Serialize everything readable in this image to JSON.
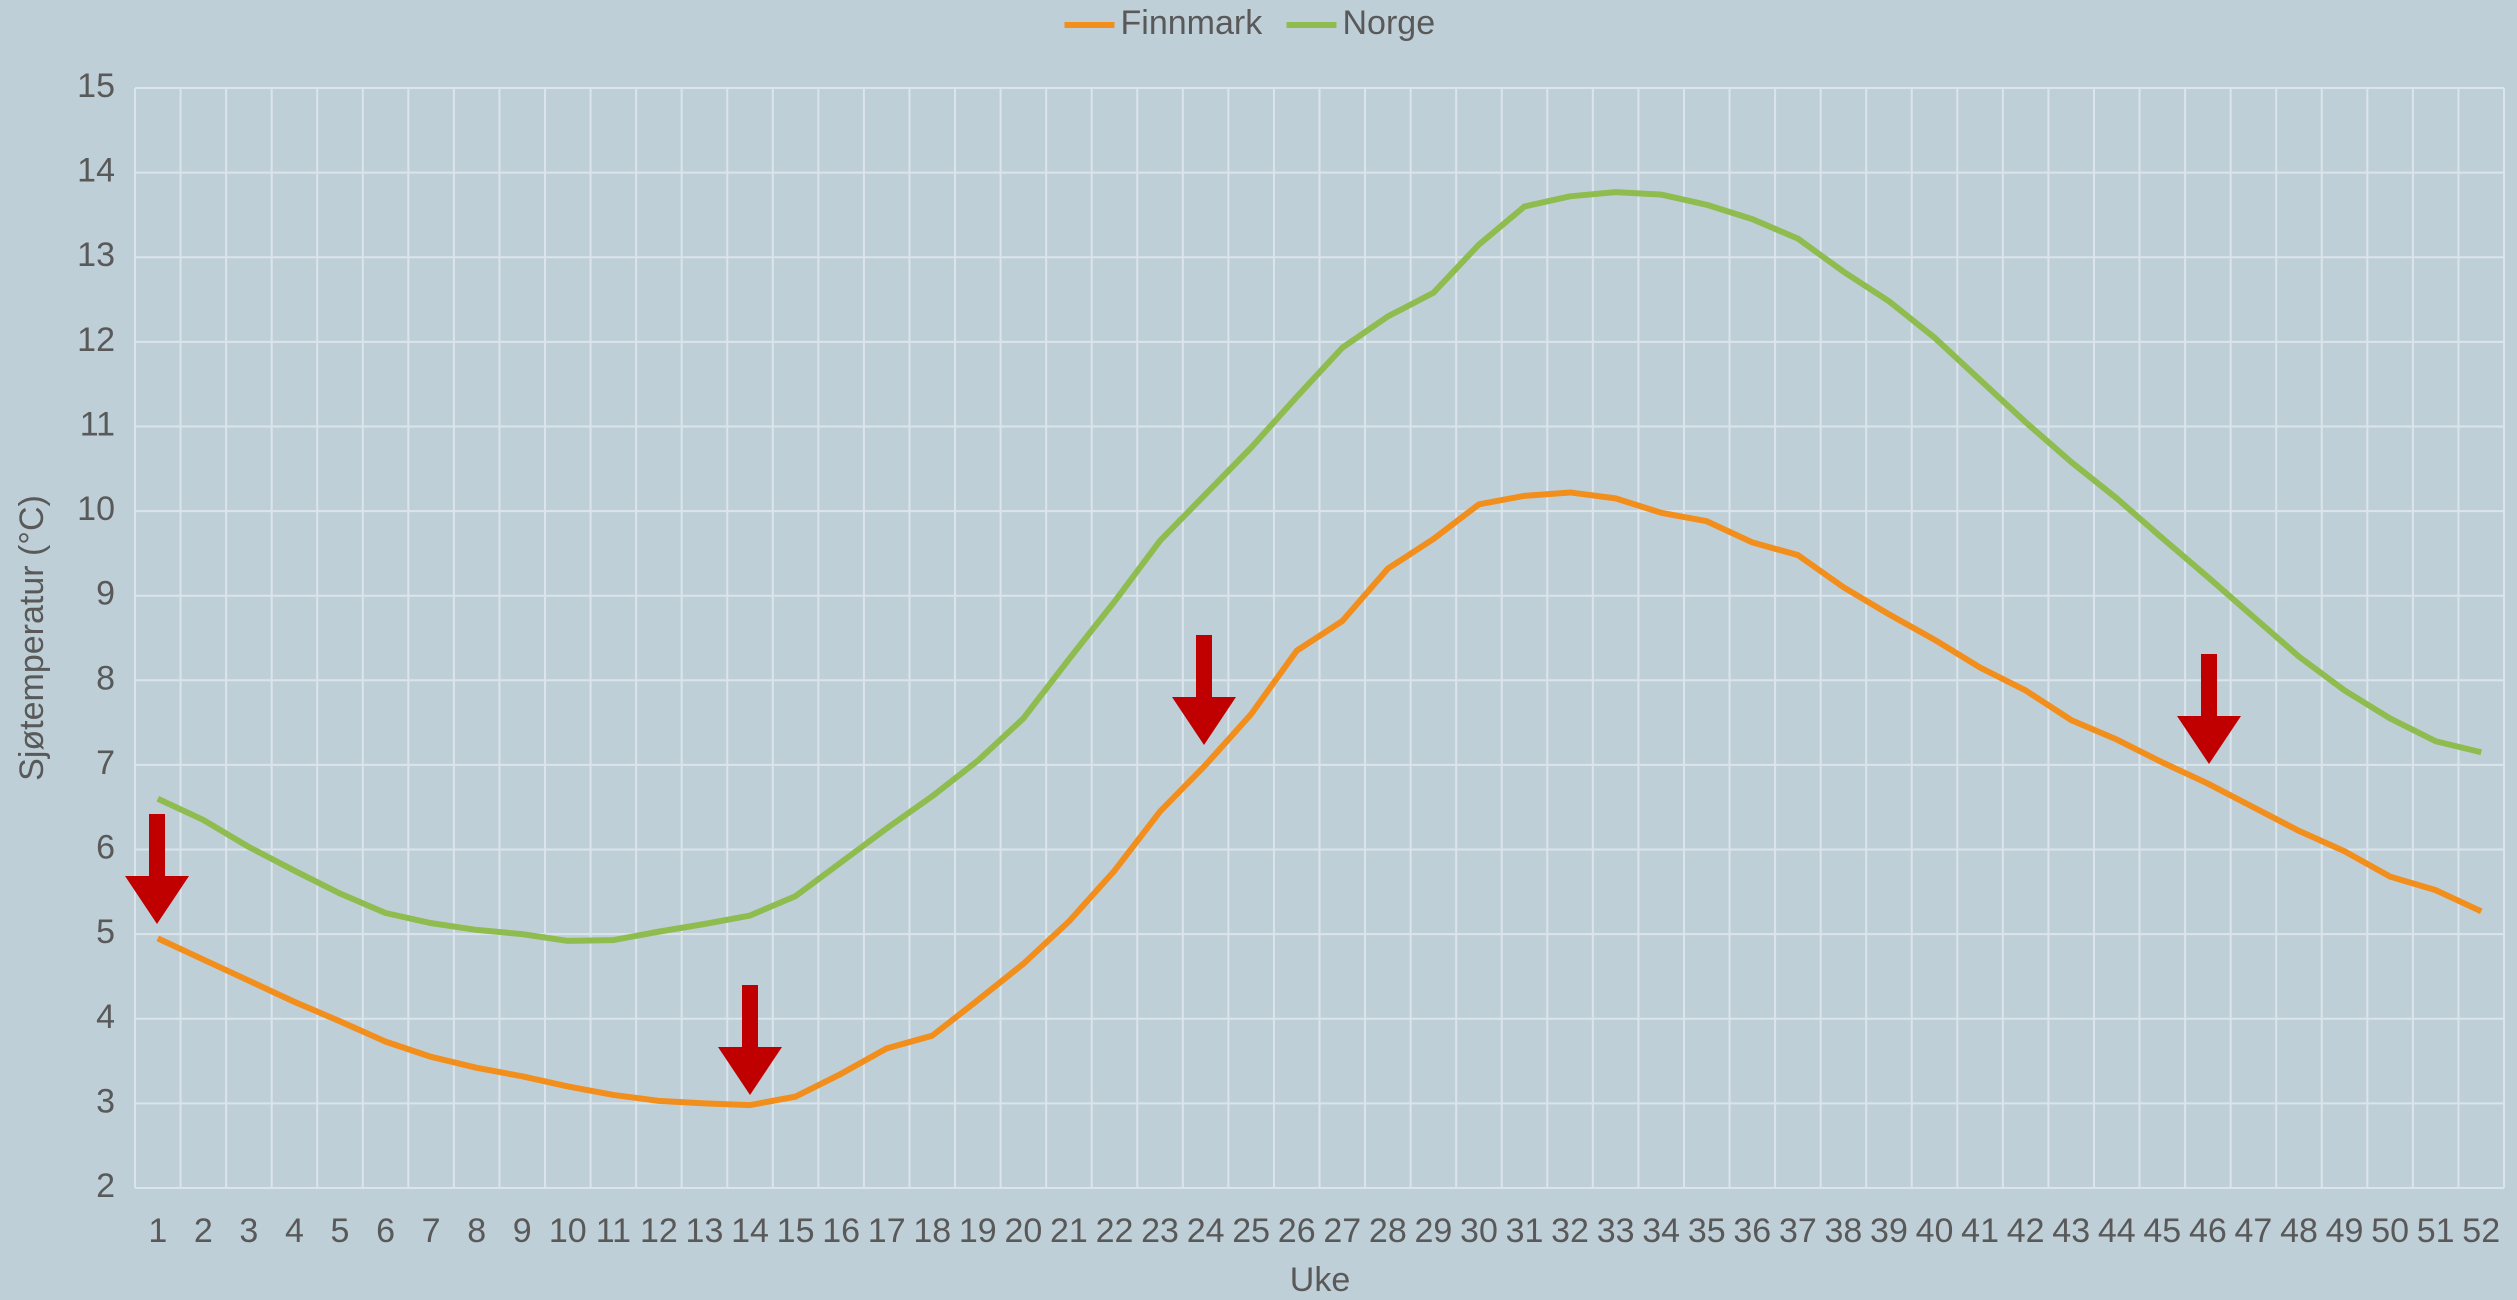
{
  "chart_data": {
    "type": "line",
    "x_label": "Uke",
    "y_label": "Sjøtemperatur (°C)",
    "categories": [
      1,
      2,
      3,
      4,
      5,
      6,
      7,
      8,
      9,
      10,
      11,
      12,
      13,
      14,
      15,
      16,
      17,
      18,
      19,
      20,
      21,
      22,
      23,
      24,
      25,
      26,
      27,
      28,
      29,
      30,
      31,
      32,
      33,
      34,
      35,
      36,
      37,
      38,
      39,
      40,
      41,
      42,
      43,
      44,
      45,
      46,
      47,
      48,
      49,
      50,
      51,
      52
    ],
    "series": [
      {
        "name": "Finnmark",
        "color": "#f28e1c",
        "values": [
          4.95,
          4.7,
          4.45,
          4.2,
          3.97,
          3.73,
          3.55,
          3.42,
          3.32,
          3.2,
          3.1,
          3.03,
          3.0,
          2.98,
          3.08,
          3.35,
          3.65,
          3.8,
          4.22,
          4.65,
          5.15,
          5.75,
          6.45,
          7.0,
          7.6,
          8.35,
          8.7,
          9.32,
          9.67,
          10.08,
          10.18,
          10.22,
          10.15,
          9.98,
          9.88,
          9.63,
          9.48,
          9.1,
          8.78,
          8.48,
          8.15,
          7.88,
          7.53,
          7.3,
          7.03,
          6.78,
          6.5,
          6.22,
          5.98,
          5.68,
          5.52,
          5.27
        ]
      },
      {
        "name": "Norge",
        "color": "#8fbc4f",
        "values": [
          6.6,
          6.35,
          6.03,
          5.75,
          5.48,
          5.25,
          5.13,
          5.05,
          5.0,
          4.92,
          4.93,
          5.03,
          5.12,
          5.22,
          5.45,
          5.85,
          6.25,
          6.63,
          7.05,
          7.55,
          8.25,
          8.93,
          9.65,
          10.2,
          10.75,
          11.35,
          11.93,
          12.3,
          12.58,
          13.15,
          13.6,
          13.72,
          13.77,
          13.74,
          13.62,
          13.45,
          13.22,
          12.83,
          12.48,
          12.05,
          11.55,
          11.05,
          10.58,
          10.15,
          9.68,
          9.22,
          8.75,
          8.28,
          7.88,
          7.55,
          7.28,
          7.15
        ]
      }
    ],
    "ylim": [
      2,
      15
    ],
    "yticks": [
      2,
      3,
      4,
      5,
      6,
      7,
      8,
      9,
      10,
      11,
      12,
      13,
      14,
      15
    ],
    "grid": true,
    "legend": "top"
  }
}
